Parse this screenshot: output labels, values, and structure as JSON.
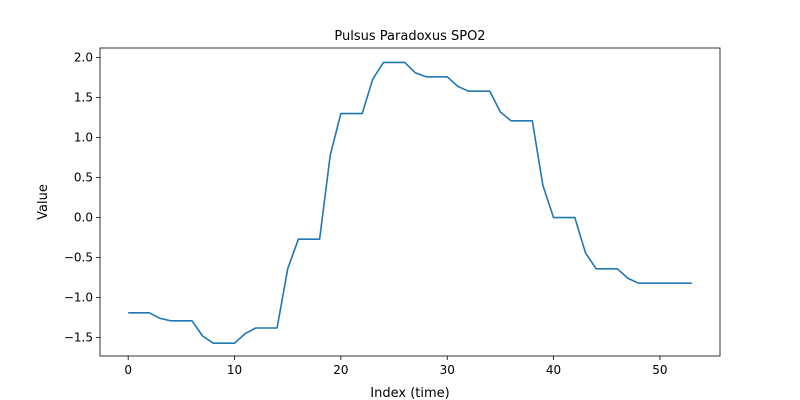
{
  "chart_data": {
    "type": "line",
    "title": "Pulsus Paradoxus SPO2",
    "xlabel": "Index (time)",
    "ylabel": "Value",
    "xlim": [
      -2.65,
      55.65
    ],
    "ylim": [
      -1.73,
      2.12
    ],
    "xticks": [
      0,
      10,
      20,
      30,
      40,
      50
    ],
    "yticks": [
      -1.5,
      -1.0,
      -0.5,
      0.0,
      0.5,
      1.0,
      1.5,
      2.0
    ],
    "xtick_labels": [
      "0",
      "10",
      "20",
      "30",
      "40",
      "50"
    ],
    "ytick_labels": [
      "−1.5",
      "−1.0",
      "−0.5",
      "0.0",
      "0.5",
      "1.0",
      "1.5",
      "2.0"
    ],
    "grid": false,
    "series": [
      {
        "color": "#1f77b4",
        "x": [
          0,
          1,
          2,
          3,
          4,
          5,
          6,
          7,
          8,
          9,
          10,
          11,
          12,
          13,
          14,
          15,
          16,
          17,
          18,
          19,
          20,
          21,
          22,
          23,
          24,
          25,
          26,
          27,
          28,
          29,
          30,
          31,
          32,
          33,
          34,
          35,
          36,
          37,
          38,
          39,
          40,
          41,
          42,
          43,
          44,
          45,
          46,
          47,
          48,
          49,
          50,
          51,
          52,
          53
        ],
        "y": [
          -1.19,
          -1.19,
          -1.19,
          -1.26,
          -1.29,
          -1.29,
          -1.29,
          -1.48,
          -1.57,
          -1.57,
          -1.57,
          -1.45,
          -1.38,
          -1.38,
          -1.38,
          -0.64,
          -0.27,
          -0.27,
          -0.27,
          0.78,
          1.3,
          1.3,
          1.3,
          1.73,
          1.94,
          1.94,
          1.94,
          1.81,
          1.76,
          1.76,
          1.76,
          1.64,
          1.58,
          1.58,
          1.58,
          1.32,
          1.21,
          1.21,
          1.21,
          0.4,
          0.0,
          0.0,
          0.0,
          -0.44,
          -0.64,
          -0.64,
          -0.64,
          -0.76,
          -0.82,
          -0.82,
          -0.82,
          -0.82,
          -0.82,
          -0.82
        ]
      }
    ]
  }
}
